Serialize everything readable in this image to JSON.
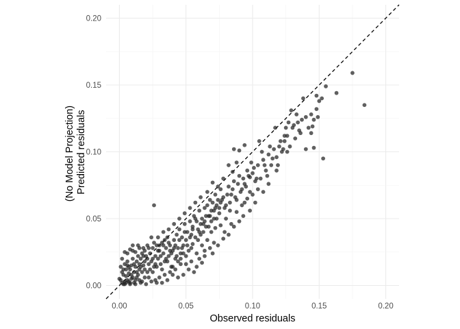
{
  "chart_data": {
    "type": "scatter",
    "title": "",
    "xlabel": "Observed residuals",
    "ylabel_lines": [
      "(No Model Projection)",
      "Predicted residuals"
    ],
    "xlim": [
      -0.01,
      0.21
    ],
    "ylim": [
      -0.01,
      0.21
    ],
    "xticks": [
      0.0,
      0.05,
      0.1,
      0.15,
      0.2
    ],
    "yticks": [
      0.0,
      0.05,
      0.1,
      0.15,
      0.2
    ],
    "xtick_labels": [
      "0.00",
      "0.05",
      "0.10",
      "0.15",
      "0.20"
    ],
    "ytick_labels": [
      "0.00",
      "0.05",
      "0.10",
      "0.15",
      "0.20"
    ],
    "grid": true,
    "reference_line": {
      "slope": 1,
      "intercept": 0,
      "style": "dashed"
    },
    "point_color": "#222222",
    "points": [
      [
        0.0,
        0.005
      ],
      [
        0.002,
        0.002
      ],
      [
        0.003,
        0.008
      ],
      [
        0.004,
        0.003
      ],
      [
        0.005,
        0.012
      ],
      [
        0.006,
        0.004
      ],
      [
        0.007,
        0.009
      ],
      [
        0.008,
        0.002
      ],
      [
        0.009,
        0.015
      ],
      [
        0.01,
        0.006
      ],
      [
        0.011,
        0.01
      ],
      [
        0.012,
        0.004
      ],
      [
        0.013,
        0.018
      ],
      [
        0.014,
        0.008
      ],
      [
        0.015,
        0.012
      ],
      [
        0.016,
        0.02
      ],
      [
        0.017,
        0.01
      ],
      [
        0.018,
        0.015
      ],
      [
        0.019,
        0.006
      ],
      [
        0.02,
        0.022
      ],
      [
        0.002,
        0.02
      ],
      [
        0.004,
        0.025
      ],
      [
        0.006,
        0.015
      ],
      [
        0.008,
        0.027
      ],
      [
        0.001,
        0.014
      ],
      [
        0.003,
        0.001
      ],
      [
        0.005,
        0.007
      ],
      [
        0.007,
        0.003
      ],
      [
        0.009,
        0.005
      ],
      [
        0.011,
        0.002
      ],
      [
        0.013,
        0.006
      ],
      [
        0.015,
        0.004
      ],
      [
        0.017,
        0.003
      ],
      [
        0.019,
        0.012
      ],
      [
        0.021,
        0.01
      ],
      [
        0.022,
        0.016
      ],
      [
        0.023,
        0.024
      ],
      [
        0.024,
        0.018
      ],
      [
        0.025,
        0.028
      ],
      [
        0.026,
        0.014
      ],
      [
        0.027,
        0.022
      ],
      [
        0.028,
        0.03
      ],
      [
        0.029,
        0.02
      ],
      [
        0.03,
        0.026
      ],
      [
        0.031,
        0.016
      ],
      [
        0.032,
        0.032
      ],
      [
        0.033,
        0.024
      ],
      [
        0.034,
        0.018
      ],
      [
        0.035,
        0.028
      ],
      [
        0.036,
        0.036
      ],
      [
        0.037,
        0.022
      ],
      [
        0.038,
        0.03
      ],
      [
        0.039,
        0.014
      ],
      [
        0.04,
        0.026
      ],
      [
        0.041,
        0.034
      ],
      [
        0.042,
        0.02
      ],
      [
        0.043,
        0.038
      ],
      [
        0.044,
        0.028
      ],
      [
        0.045,
        0.042
      ],
      [
        0.046,
        0.024
      ],
      [
        0.047,
        0.036
      ],
      [
        0.048,
        0.03
      ],
      [
        0.049,
        0.046
      ],
      [
        0.05,
        0.034
      ],
      [
        0.051,
        0.04
      ],
      [
        0.052,
        0.026
      ],
      [
        0.053,
        0.048
      ],
      [
        0.054,
        0.038
      ],
      [
        0.055,
        0.044
      ],
      [
        0.056,
        0.052
      ],
      [
        0.057,
        0.036
      ],
      [
        0.058,
        0.048
      ],
      [
        0.059,
        0.042
      ],
      [
        0.06,
        0.056
      ],
      [
        0.061,
        0.038
      ],
      [
        0.062,
        0.05
      ],
      [
        0.063,
        0.046
      ],
      [
        0.064,
        0.058
      ],
      [
        0.065,
        0.044
      ],
      [
        0.066,
        0.06
      ],
      [
        0.067,
        0.052
      ],
      [
        0.068,
        0.064
      ],
      [
        0.069,
        0.048
      ],
      [
        0.07,
        0.062
      ],
      [
        0.071,
        0.056
      ],
      [
        0.072,
        0.068
      ],
      [
        0.073,
        0.05
      ],
      [
        0.074,
        0.064
      ],
      [
        0.075,
        0.058
      ],
      [
        0.076,
        0.072
      ],
      [
        0.078,
        0.066
      ],
      [
        0.08,
        0.06
      ],
      [
        0.082,
        0.074
      ],
      [
        0.084,
        0.068
      ],
      [
        0.086,
        0.078
      ],
      [
        0.088,
        0.064
      ],
      [
        0.09,
        0.082
      ],
      [
        0.092,
        0.072
      ],
      [
        0.094,
        0.076
      ],
      [
        0.096,
        0.086
      ],
      [
        0.098,
        0.07
      ],
      [
        0.1,
        0.084
      ],
      [
        0.102,
        0.078
      ],
      [
        0.104,
        0.09
      ],
      [
        0.106,
        0.08
      ],
      [
        0.108,
        0.094
      ],
      [
        0.11,
        0.086
      ],
      [
        0.112,
        0.098
      ],
      [
        0.114,
        0.09
      ],
      [
        0.116,
        0.102
      ],
      [
        0.118,
        0.096
      ],
      [
        0.12,
        0.104
      ],
      [
        0.122,
        0.1
      ],
      [
        0.124,
        0.108
      ],
      [
        0.126,
        0.112
      ],
      [
        0.128,
        0.104
      ],
      [
        0.13,
        0.118
      ],
      [
        0.132,
        0.11
      ],
      [
        0.134,
        0.122
      ],
      [
        0.136,
        0.114
      ],
      [
        0.14,
        0.126
      ],
      [
        0.142,
        0.118
      ],
      [
        0.144,
        0.128
      ],
      [
        0.146,
        0.124
      ],
      [
        0.148,
        0.132
      ],
      [
        0.15,
        0.138
      ],
      [
        0.146,
        0.103
      ],
      [
        0.14,
        0.102
      ],
      [
        0.153,
        0.095
      ],
      [
        0.155,
        0.149
      ],
      [
        0.163,
        0.144
      ],
      [
        0.175,
        0.159
      ],
      [
        0.184,
        0.135
      ],
      [
        0.148,
        0.142
      ],
      [
        0.138,
        0.14
      ],
      [
        0.129,
        0.131
      ],
      [
        0.124,
        0.112
      ],
      [
        0.117,
        0.118
      ],
      [
        0.105,
        0.108
      ],
      [
        0.098,
        0.081
      ],
      [
        0.094,
        0.105
      ],
      [
        0.085,
        0.085
      ],
      [
        0.088,
        0.092
      ],
      [
        0.09,
        0.101
      ],
      [
        0.086,
        0.102
      ],
      [
        0.082,
        0.09
      ],
      [
        0.078,
        0.08
      ],
      [
        0.074,
        0.074
      ],
      [
        0.07,
        0.077
      ],
      [
        0.066,
        0.07
      ],
      [
        0.061,
        0.066
      ],
      [
        0.057,
        0.062
      ],
      [
        0.053,
        0.058
      ],
      [
        0.049,
        0.054
      ],
      [
        0.045,
        0.05
      ],
      [
        0.041,
        0.046
      ],
      [
        0.037,
        0.042
      ],
      [
        0.033,
        0.04
      ],
      [
        0.029,
        0.036
      ],
      [
        0.026,
        0.06
      ],
      [
        0.024,
        0.036
      ],
      [
        0.021,
        0.03
      ],
      [
        0.018,
        0.028
      ],
      [
        0.015,
        0.028
      ],
      [
        0.012,
        0.025
      ],
      [
        0.01,
        0.03
      ],
      [
        0.062,
        0.03
      ],
      [
        0.066,
        0.034
      ],
      [
        0.069,
        0.04
      ],
      [
        0.072,
        0.043
      ],
      [
        0.058,
        0.024
      ],
      [
        0.054,
        0.018
      ],
      [
        0.05,
        0.022
      ],
      [
        0.046,
        0.016
      ],
      [
        0.042,
        0.012
      ],
      [
        0.038,
        0.01
      ],
      [
        0.034,
        0.008
      ],
      [
        0.03,
        0.006
      ],
      [
        0.027,
        0.004
      ],
      [
        0.055,
        0.031
      ],
      [
        0.076,
        0.045
      ],
      [
        0.08,
        0.05
      ],
      [
        0.084,
        0.046
      ],
      [
        0.088,
        0.055
      ],
      [
        0.092,
        0.06
      ],
      [
        0.096,
        0.065
      ],
      [
        0.1,
        0.068
      ],
      [
        0.104,
        0.072
      ],
      [
        0.093,
        0.052
      ],
      [
        0.083,
        0.056
      ],
      [
        0.079,
        0.04
      ],
      [
        0.071,
        0.032
      ],
      [
        0.064,
        0.026
      ],
      [
        0.06,
        0.02
      ],
      [
        0.052,
        0.012
      ],
      [
        0.048,
        0.008
      ],
      [
        0.044,
        0.006
      ],
      [
        0.04,
        0.014
      ],
      [
        0.036,
        0.018
      ],
      [
        0.032,
        0.012
      ],
      [
        0.028,
        0.014
      ],
      [
        0.025,
        0.01
      ],
      [
        0.022,
        0.006
      ],
      [
        0.019,
        0.018
      ],
      [
        0.016,
        0.014
      ],
      [
        0.014,
        0.022
      ],
      [
        0.012,
        0.014
      ],
      [
        0.01,
        0.02
      ],
      [
        0.008,
        0.012
      ],
      [
        0.006,
        0.018
      ],
      [
        0.004,
        0.016
      ],
      [
        0.002,
        0.01
      ],
      [
        0.001,
        0.004
      ],
      [
        0.003,
        0.012
      ],
      [
        0.005,
        0.002
      ],
      [
        0.007,
        0.014
      ],
      [
        0.009,
        0.008
      ],
      [
        0.011,
        0.016
      ],
      [
        0.013,
        0.01
      ],
      [
        0.015,
        0.016
      ],
      [
        0.017,
        0.024
      ],
      [
        0.019,
        0.026
      ],
      [
        0.021,
        0.02
      ],
      [
        0.023,
        0.012
      ],
      [
        0.025,
        0.02
      ],
      [
        0.027,
        0.016
      ],
      [
        0.029,
        0.026
      ],
      [
        0.031,
        0.022
      ],
      [
        0.033,
        0.03
      ],
      [
        0.035,
        0.02
      ],
      [
        0.037,
        0.032
      ],
      [
        0.039,
        0.024
      ],
      [
        0.041,
        0.028
      ],
      [
        0.043,
        0.022
      ],
      [
        0.045,
        0.034
      ],
      [
        0.047,
        0.028
      ],
      [
        0.049,
        0.04
      ],
      [
        0.051,
        0.03
      ],
      [
        0.053,
        0.036
      ],
      [
        0.055,
        0.042
      ],
      [
        0.057,
        0.05
      ],
      [
        0.059,
        0.034
      ],
      [
        0.061,
        0.046
      ],
      [
        0.063,
        0.04
      ],
      [
        0.065,
        0.052
      ],
      [
        0.067,
        0.044
      ],
      [
        0.069,
        0.056
      ],
      [
        0.071,
        0.05
      ],
      [
        0.073,
        0.06
      ],
      [
        0.075,
        0.054
      ],
      [
        0.077,
        0.064
      ],
      [
        0.079,
        0.058
      ],
      [
        0.081,
        0.068
      ],
      [
        0.083,
        0.062
      ],
      [
        0.085,
        0.072
      ],
      [
        0.087,
        0.066
      ],
      [
        0.089,
        0.076
      ],
      [
        0.091,
        0.07
      ],
      [
        0.093,
        0.08
      ],
      [
        0.095,
        0.074
      ],
      [
        0.097,
        0.082
      ],
      [
        0.099,
        0.092
      ],
      [
        0.101,
        0.088
      ],
      [
        0.103,
        0.08
      ],
      [
        0.107,
        0.1
      ],
      [
        0.109,
        0.09
      ],
      [
        0.111,
        0.082
      ],
      [
        0.113,
        0.104
      ],
      [
        0.115,
        0.095
      ],
      [
        0.119,
        0.09
      ],
      [
        0.121,
        0.108
      ],
      [
        0.123,
        0.102
      ],
      [
        0.125,
        0.118
      ],
      [
        0.127,
        0.122
      ],
      [
        0.131,
        0.12
      ],
      [
        0.133,
        0.128
      ],
      [
        0.135,
        0.116
      ],
      [
        0.137,
        0.124
      ],
      [
        0.145,
        0.119
      ],
      [
        0.149,
        0.126
      ],
      [
        0.152,
        0.14
      ],
      [
        0.144,
        0.114
      ],
      [
        0.126,
        0.1
      ],
      [
        0.118,
        0.086
      ],
      [
        0.112,
        0.076
      ],
      [
        0.108,
        0.07
      ],
      [
        0.102,
        0.062
      ],
      [
        0.098,
        0.056
      ],
      [
        0.094,
        0.062
      ],
      [
        0.09,
        0.048
      ],
      [
        0.086,
        0.044
      ],
      [
        0.082,
        0.038
      ],
      [
        0.078,
        0.035
      ],
      [
        0.074,
        0.03
      ],
      [
        0.068,
        0.028
      ],
      [
        0.064,
        0.022
      ],
      [
        0.058,
        0.014
      ],
      [
        0.056,
        0.01
      ],
      [
        0.062,
        0.017
      ],
      [
        0.07,
        0.024
      ],
      [
        0.04,
        0.008
      ],
      [
        0.036,
        0.004
      ],
      [
        0.032,
        0.002
      ],
      [
        0.028,
        0.002
      ],
      [
        0.024,
        0.003
      ],
      [
        0.02,
        0.001
      ],
      [
        0.016,
        0.002
      ],
      [
        0.012,
        0.001
      ],
      [
        0.008,
        0.001
      ],
      [
        0.004,
        0.001
      ],
      [
        0.046,
        0.02
      ],
      [
        0.05,
        0.016
      ],
      [
        0.054,
        0.028
      ],
      [
        0.048,
        0.024
      ],
      [
        0.044,
        0.018
      ],
      [
        0.042,
        0.03
      ],
      [
        0.038,
        0.026
      ],
      [
        0.034,
        0.034
      ],
      [
        0.03,
        0.03
      ],
      [
        0.026,
        0.032
      ],
      [
        0.022,
        0.028
      ],
      [
        0.018,
        0.022
      ],
      [
        0.014,
        0.03
      ],
      [
        0.01,
        0.026
      ],
      [
        0.006,
        0.024
      ],
      [
        0.06,
        0.04
      ],
      [
        0.064,
        0.048
      ],
      [
        0.068,
        0.052
      ],
      [
        0.072,
        0.058
      ],
      [
        0.076,
        0.062
      ]
    ]
  }
}
